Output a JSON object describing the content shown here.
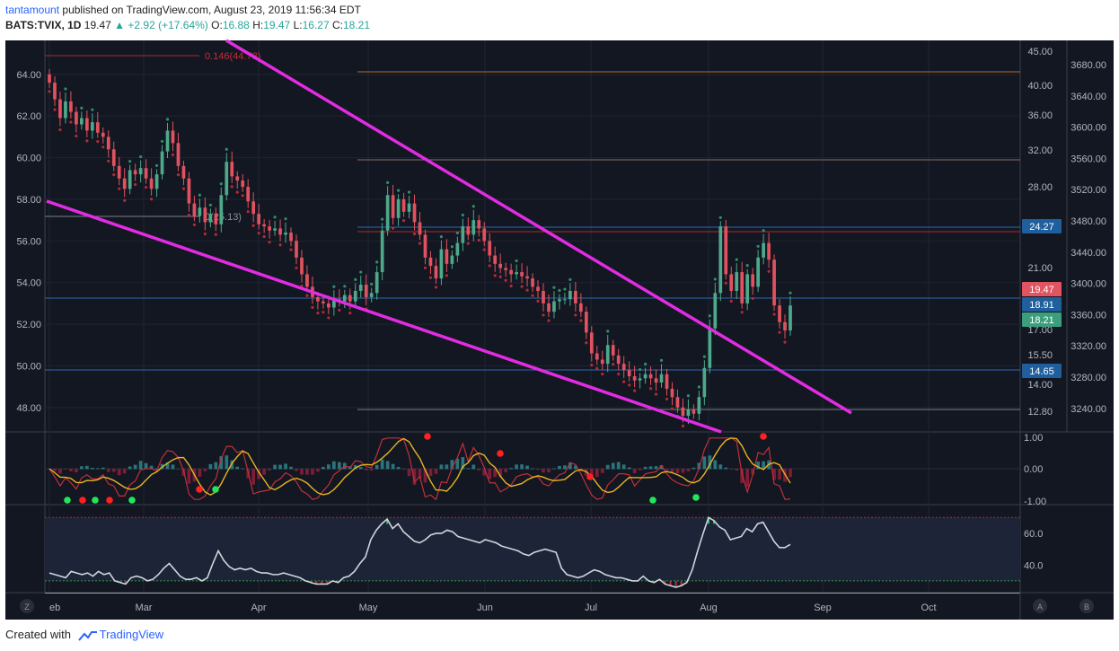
{
  "header": {
    "author": "tantamount",
    "published_text": "published on TradingView.com, August 23, 2019 11:56:34 EDT",
    "symbol": "BATS:TVIX, 1D",
    "last": "19.47",
    "change": "+2.92 (+17.64%)",
    "o_label": "O:",
    "o_value": "16.88",
    "h_label": "H:",
    "h_value": "19.47",
    "l_label": "L:",
    "l_value": "16.27",
    "c_label": "C:",
    "c_value": "18.21"
  },
  "footer": {
    "created_with": "Created with",
    "brand": "TradingView"
  },
  "colors": {
    "background": "#131722",
    "up": "#4da98a",
    "down": "#e0525f",
    "trendline": "#e22ce2",
    "hline_blue": "#2a6ab4",
    "hline_orange": "#b96a24",
    "hline_red": "#b02a2a",
    "accent_blue": "#1f5f9e",
    "price_red": "#e05561",
    "price_green": "#3b9f7c"
  },
  "chart_data": {
    "type": "candlestick",
    "x_ticks": [
      "eb",
      "Mar",
      "Apr",
      "May",
      "Jun",
      "Jul",
      "Aug",
      "Sep",
      "Oct"
    ],
    "left_axis": {
      "ticks": [
        "64.00",
        "62.00",
        "60.00",
        "58.00",
        "56.00",
        "54.00",
        "52.00",
        "50.00",
        "48.00"
      ],
      "ylim": [
        47.0,
        65.2
      ]
    },
    "right_axis_log": {
      "ticks": [
        "45.00",
        "40.00",
        "36.00",
        "32.00",
        "28.00",
        "24.27",
        "21.00",
        "19.47",
        "18.91",
        "18.21",
        "17.00",
        "15.50",
        "14.65",
        "14.00",
        "12.80"
      ]
    },
    "right_axis_tvix": {
      "ticks": [
        "3680.00",
        "3640.00",
        "3600.00",
        "3560.00",
        "3520.00",
        "3480.00",
        "3440.00",
        "3400.00",
        "3360.00",
        "3320.00",
        "3280.00",
        "3240.00"
      ]
    },
    "price_badges": [
      {
        "value": "24.27",
        "color": "#1f5f9e"
      },
      {
        "value": "19.47",
        "color": "#e05561"
      },
      {
        "value": "18.91",
        "color": "#1f5f9e"
      },
      {
        "value": "18.21",
        "color": "#3b9f7c"
      },
      {
        "value": "14.65",
        "color": "#1f5f9e"
      }
    ],
    "annotations": [
      {
        "text": "0.146(44.78)"
      },
      {
        "text": "0(25.13)"
      }
    ],
    "closes": [
      63.6,
      62.8,
      61.9,
      62.7,
      62.2,
      61.6,
      61.9,
      61.3,
      61.7,
      61.2,
      61.0,
      60.4,
      59.6,
      59.0,
      58.5,
      59.4,
      59.2,
      59.5,
      59.0,
      58.5,
      59.2,
      60.3,
      61.3,
      60.7,
      59.6,
      59.0,
      57.8,
      57.2,
      57.6,
      56.9,
      57.3,
      56.8,
      58.2,
      59.8,
      59.1,
      58.9,
      58.6,
      57.9,
      57.3,
      56.8,
      56.7,
      56.5,
      56.6,
      56.3,
      56.4,
      56.0,
      55.2,
      54.4,
      53.8,
      53.3,
      53.1,
      53.0,
      52.8,
      53.2,
      53.1,
      53.4,
      53.1,
      53.6,
      53.9,
      53.3,
      53.5,
      54.5,
      56.5,
      58.2,
      57.1,
      58.0,
      57.4,
      57.8,
      56.9,
      56.3,
      55.2,
      54.8,
      54.2,
      55.6,
      54.9,
      55.3,
      55.9,
      56.7,
      56.3,
      57.0,
      56.6,
      56.0,
      55.3,
      54.9,
      54.7,
      54.6,
      54.4,
      54.5,
      54.3,
      54.2,
      53.8,
      53.6,
      53.0,
      52.6,
      53.1,
      53.2,
      53.2,
      53.6,
      53.0,
      52.6,
      51.6,
      50.6,
      50.3,
      50.1,
      51.0,
      50.5,
      50.1,
      49.8,
      49.5,
      49.3,
      49.4,
      49.6,
      49.4,
      49.2,
      49.6,
      48.9,
      48.5,
      48.0,
      47.6,
      47.9,
      47.7,
      48.5,
      49.9,
      51.8,
      53.5,
      56.7,
      54.4,
      53.6,
      54.5,
      53.0,
      54.4,
      53.8,
      55.2,
      55.9,
      55.1,
      52.9,
      52.1,
      51.7,
      52.9
    ],
    "lows": [
      null
    ],
    "oscillator": {
      "type": "histogram+lines",
      "ylim": [
        -1.0,
        1.0
      ],
      "ticks": [
        "1.00",
        "0.00",
        "-1.00"
      ]
    },
    "rsi": {
      "type": "line",
      "ticks": [
        "60.0",
        "40.0"
      ],
      "ylim": [
        26,
        73
      ],
      "values": [
        35,
        34,
        33,
        32,
        36,
        35,
        34,
        35,
        33,
        36,
        34,
        35,
        30,
        29,
        28,
        32,
        33,
        32,
        30,
        31,
        34,
        38,
        41,
        37,
        33,
        31,
        31,
        32,
        30,
        32,
        41,
        49,
        43,
        39,
        37,
        38,
        37,
        38,
        36,
        35,
        35,
        34,
        34,
        35,
        34,
        33,
        32,
        30,
        29,
        28,
        28,
        28,
        30,
        29,
        32,
        33,
        36,
        41,
        45,
        56,
        62,
        66,
        69,
        63,
        66,
        61,
        58,
        55,
        54,
        56,
        59,
        60,
        60,
        62,
        61,
        58,
        57,
        56,
        55,
        54,
        56,
        55,
        54,
        52,
        51,
        50,
        49,
        47,
        46,
        48,
        49,
        50,
        49,
        48,
        38,
        34,
        33,
        32,
        33,
        35,
        37,
        36,
        34,
        33,
        32,
        32,
        31,
        30,
        30,
        33,
        30,
        29,
        31,
        28,
        27,
        26,
        27,
        29,
        37,
        49,
        60,
        70,
        68,
        64,
        62,
        56,
        57,
        58,
        63,
        61,
        66,
        67,
        61,
        55,
        51,
        51,
        53
      ]
    },
    "crosshair_side": {
      "left": "Z",
      "right_a": "A",
      "right_b": "B"
    }
  }
}
